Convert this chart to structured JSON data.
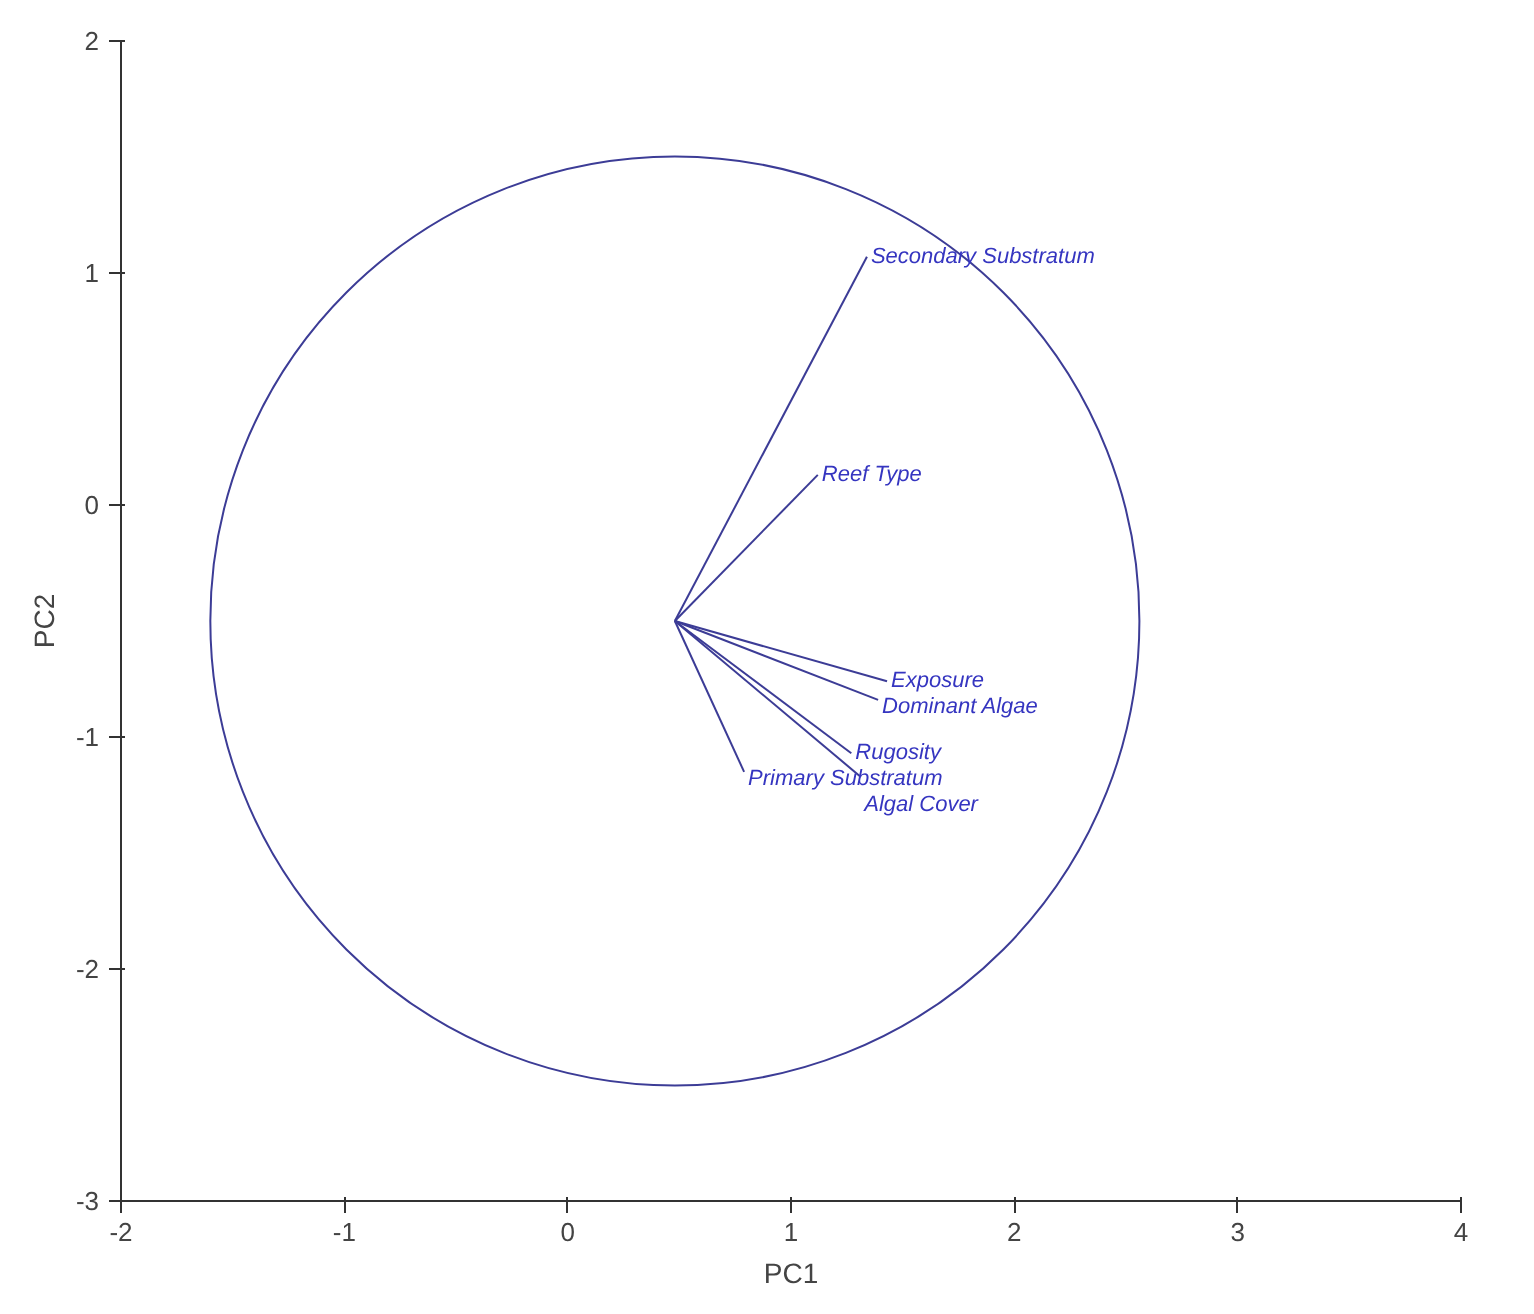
{
  "chart_data": {
    "type": "line",
    "xlabel": "PC1",
    "ylabel": "PC2",
    "xlim": [
      -2,
      4
    ],
    "ylim": [
      -3,
      2
    ],
    "xticks": [
      -2,
      -1,
      0,
      1,
      2,
      3,
      4
    ],
    "yticks": [
      -3,
      -2,
      -1,
      0,
      1,
      2
    ],
    "grid": false,
    "series": [
      {
        "name": "Secondary Substratum",
        "color": "#3c3c96",
        "x": [
          0.48,
          1.34
        ],
        "values": [
          -0.5,
          1.07
        ]
      },
      {
        "name": "Reef Type",
        "color": "#3c3c96",
        "x": [
          0.48,
          1.12
        ],
        "values": [
          -0.5,
          0.13
        ]
      },
      {
        "name": "Exposure",
        "color": "#3c3c96",
        "x": [
          0.48,
          1.43
        ],
        "values": [
          -0.5,
          -0.76
        ]
      },
      {
        "name": "Dominant Algae",
        "color": "#3c3c96",
        "x": [
          0.48,
          1.39
        ],
        "values": [
          -0.5,
          -0.84
        ]
      },
      {
        "name": "Rugosity",
        "color": "#3c3c96",
        "x": [
          0.48,
          1.27
        ],
        "values": [
          -0.5,
          -1.07
        ]
      },
      {
        "name": "Algal Cover",
        "color": "#3c3c96",
        "x": [
          0.48,
          1.31
        ],
        "values": [
          -0.5,
          -1.17
        ]
      },
      {
        "name": "Primary Substratum",
        "color": "#3c3c96",
        "x": [
          0.48,
          0.79
        ],
        "values": [
          -0.5,
          -1.15
        ]
      }
    ]
  }
}
